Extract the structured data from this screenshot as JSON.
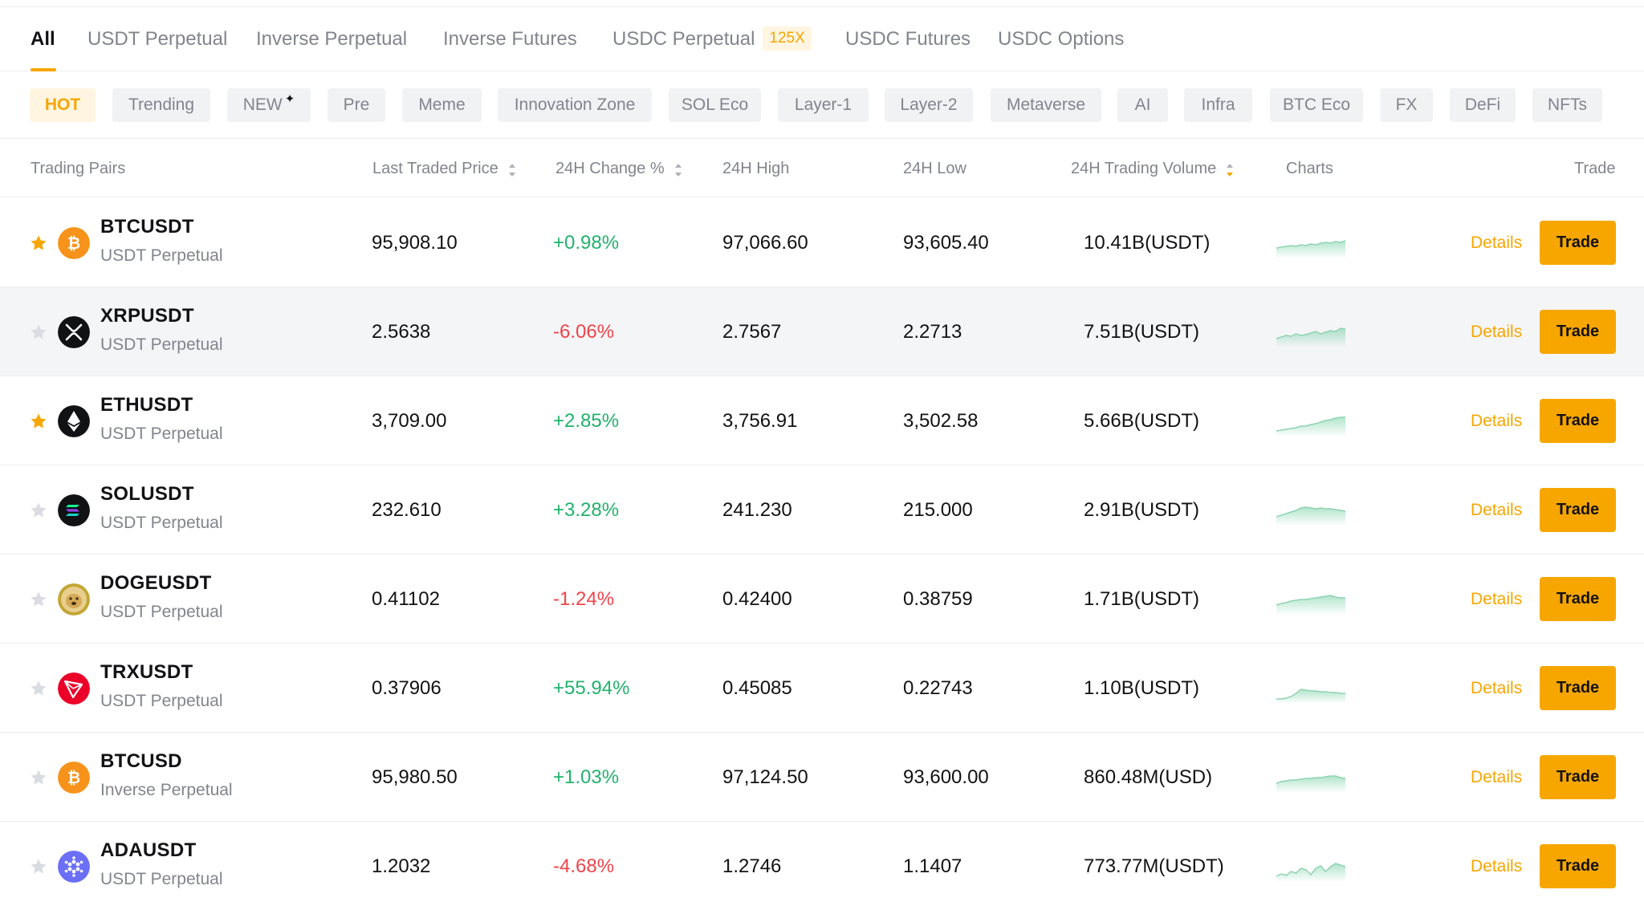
{
  "tabs": [
    {
      "label": "All",
      "active": true
    },
    {
      "label": "USDT Perpetual"
    },
    {
      "label": "Inverse Perpetual"
    },
    {
      "label": "Inverse Futures"
    },
    {
      "label": "USDC Perpetual",
      "badge": "125X"
    },
    {
      "label": "USDC Futures"
    },
    {
      "label": "USDC Options"
    }
  ],
  "chips": [
    {
      "label": "HOT",
      "active": true
    },
    {
      "label": "Trending"
    },
    {
      "label": "NEW",
      "icon": "sparkle-icon"
    },
    {
      "label": "Pre"
    },
    {
      "label": "Meme"
    },
    {
      "label": "Innovation Zone"
    },
    {
      "label": "SOL Eco"
    },
    {
      "label": "Layer-1"
    },
    {
      "label": "Layer-2"
    },
    {
      "label": "Metaverse"
    },
    {
      "label": "AI"
    },
    {
      "label": "Infra"
    },
    {
      "label": "BTC Eco"
    },
    {
      "label": "FX"
    },
    {
      "label": "DeFi"
    },
    {
      "label": "NFTs"
    }
  ],
  "table": {
    "headers": {
      "pair": "Trading Pairs",
      "last_price": "Last Traded Price",
      "change": "24H Change %",
      "high": "24H High",
      "low": "24H Low",
      "volume": "24H Trading Volume",
      "charts": "Charts",
      "trade": "Trade"
    },
    "details_label": "Details",
    "trade_label": "Trade",
    "rows": [
      {
        "symbol": "BTCUSDT",
        "type": "USDT Perpetual",
        "price": "95,908.10",
        "change": "+0.98%",
        "direction": "up",
        "high": "97,066.60",
        "low": "93,605.40",
        "volume": "10.41B(USDT)",
        "favorite": true,
        "icon": "bitcoin-icon"
      },
      {
        "symbol": "XRPUSDT",
        "type": "USDT Perpetual",
        "price": "2.5638",
        "change": "-6.06%",
        "direction": "down",
        "high": "2.7567",
        "low": "2.2713",
        "volume": "7.51B(USDT)",
        "favorite": false,
        "icon": "xrp-icon"
      },
      {
        "symbol": "ETHUSDT",
        "type": "USDT Perpetual",
        "price": "3,709.00",
        "change": "+2.85%",
        "direction": "up",
        "high": "3,756.91",
        "low": "3,502.58",
        "volume": "5.66B(USDT)",
        "favorite": true,
        "icon": "ethereum-icon"
      },
      {
        "symbol": "SOLUSDT",
        "type": "USDT Perpetual",
        "price": "232.610",
        "change": "+3.28%",
        "direction": "up",
        "high": "241.230",
        "low": "215.000",
        "volume": "2.91B(USDT)",
        "favorite": false,
        "icon": "solana-icon"
      },
      {
        "symbol": "DOGEUSDT",
        "type": "USDT Perpetual",
        "price": "0.41102",
        "change": "-1.24%",
        "direction": "down",
        "high": "0.42400",
        "low": "0.38759",
        "volume": "1.71B(USDT)",
        "favorite": false,
        "icon": "dogecoin-icon"
      },
      {
        "symbol": "TRXUSDT",
        "type": "USDT Perpetual",
        "price": "0.37906",
        "change": "+55.94%",
        "direction": "up",
        "high": "0.45085",
        "low": "0.22743",
        "volume": "1.10B(USDT)",
        "favorite": false,
        "icon": "tron-icon"
      },
      {
        "symbol": "BTCUSD",
        "type": "Inverse Perpetual",
        "price": "95,980.50",
        "change": "+1.03%",
        "direction": "up",
        "high": "97,124.50",
        "low": "93,600.00",
        "volume": "860.48M(USD)",
        "favorite": false,
        "icon": "bitcoin-icon"
      },
      {
        "symbol": "ADAUSDT",
        "type": "USDT Perpetual",
        "price": "1.2032",
        "change": "-4.68%",
        "direction": "down",
        "high": "1.2746",
        "low": "1.1407",
        "volume": "773.77M(USDT)",
        "favorite": false,
        "icon": "cardano-icon"
      }
    ]
  },
  "colors": {
    "accent": "#f7a600",
    "up": "#20b26c",
    "down": "#ef454a",
    "muted": "#81858c"
  }
}
